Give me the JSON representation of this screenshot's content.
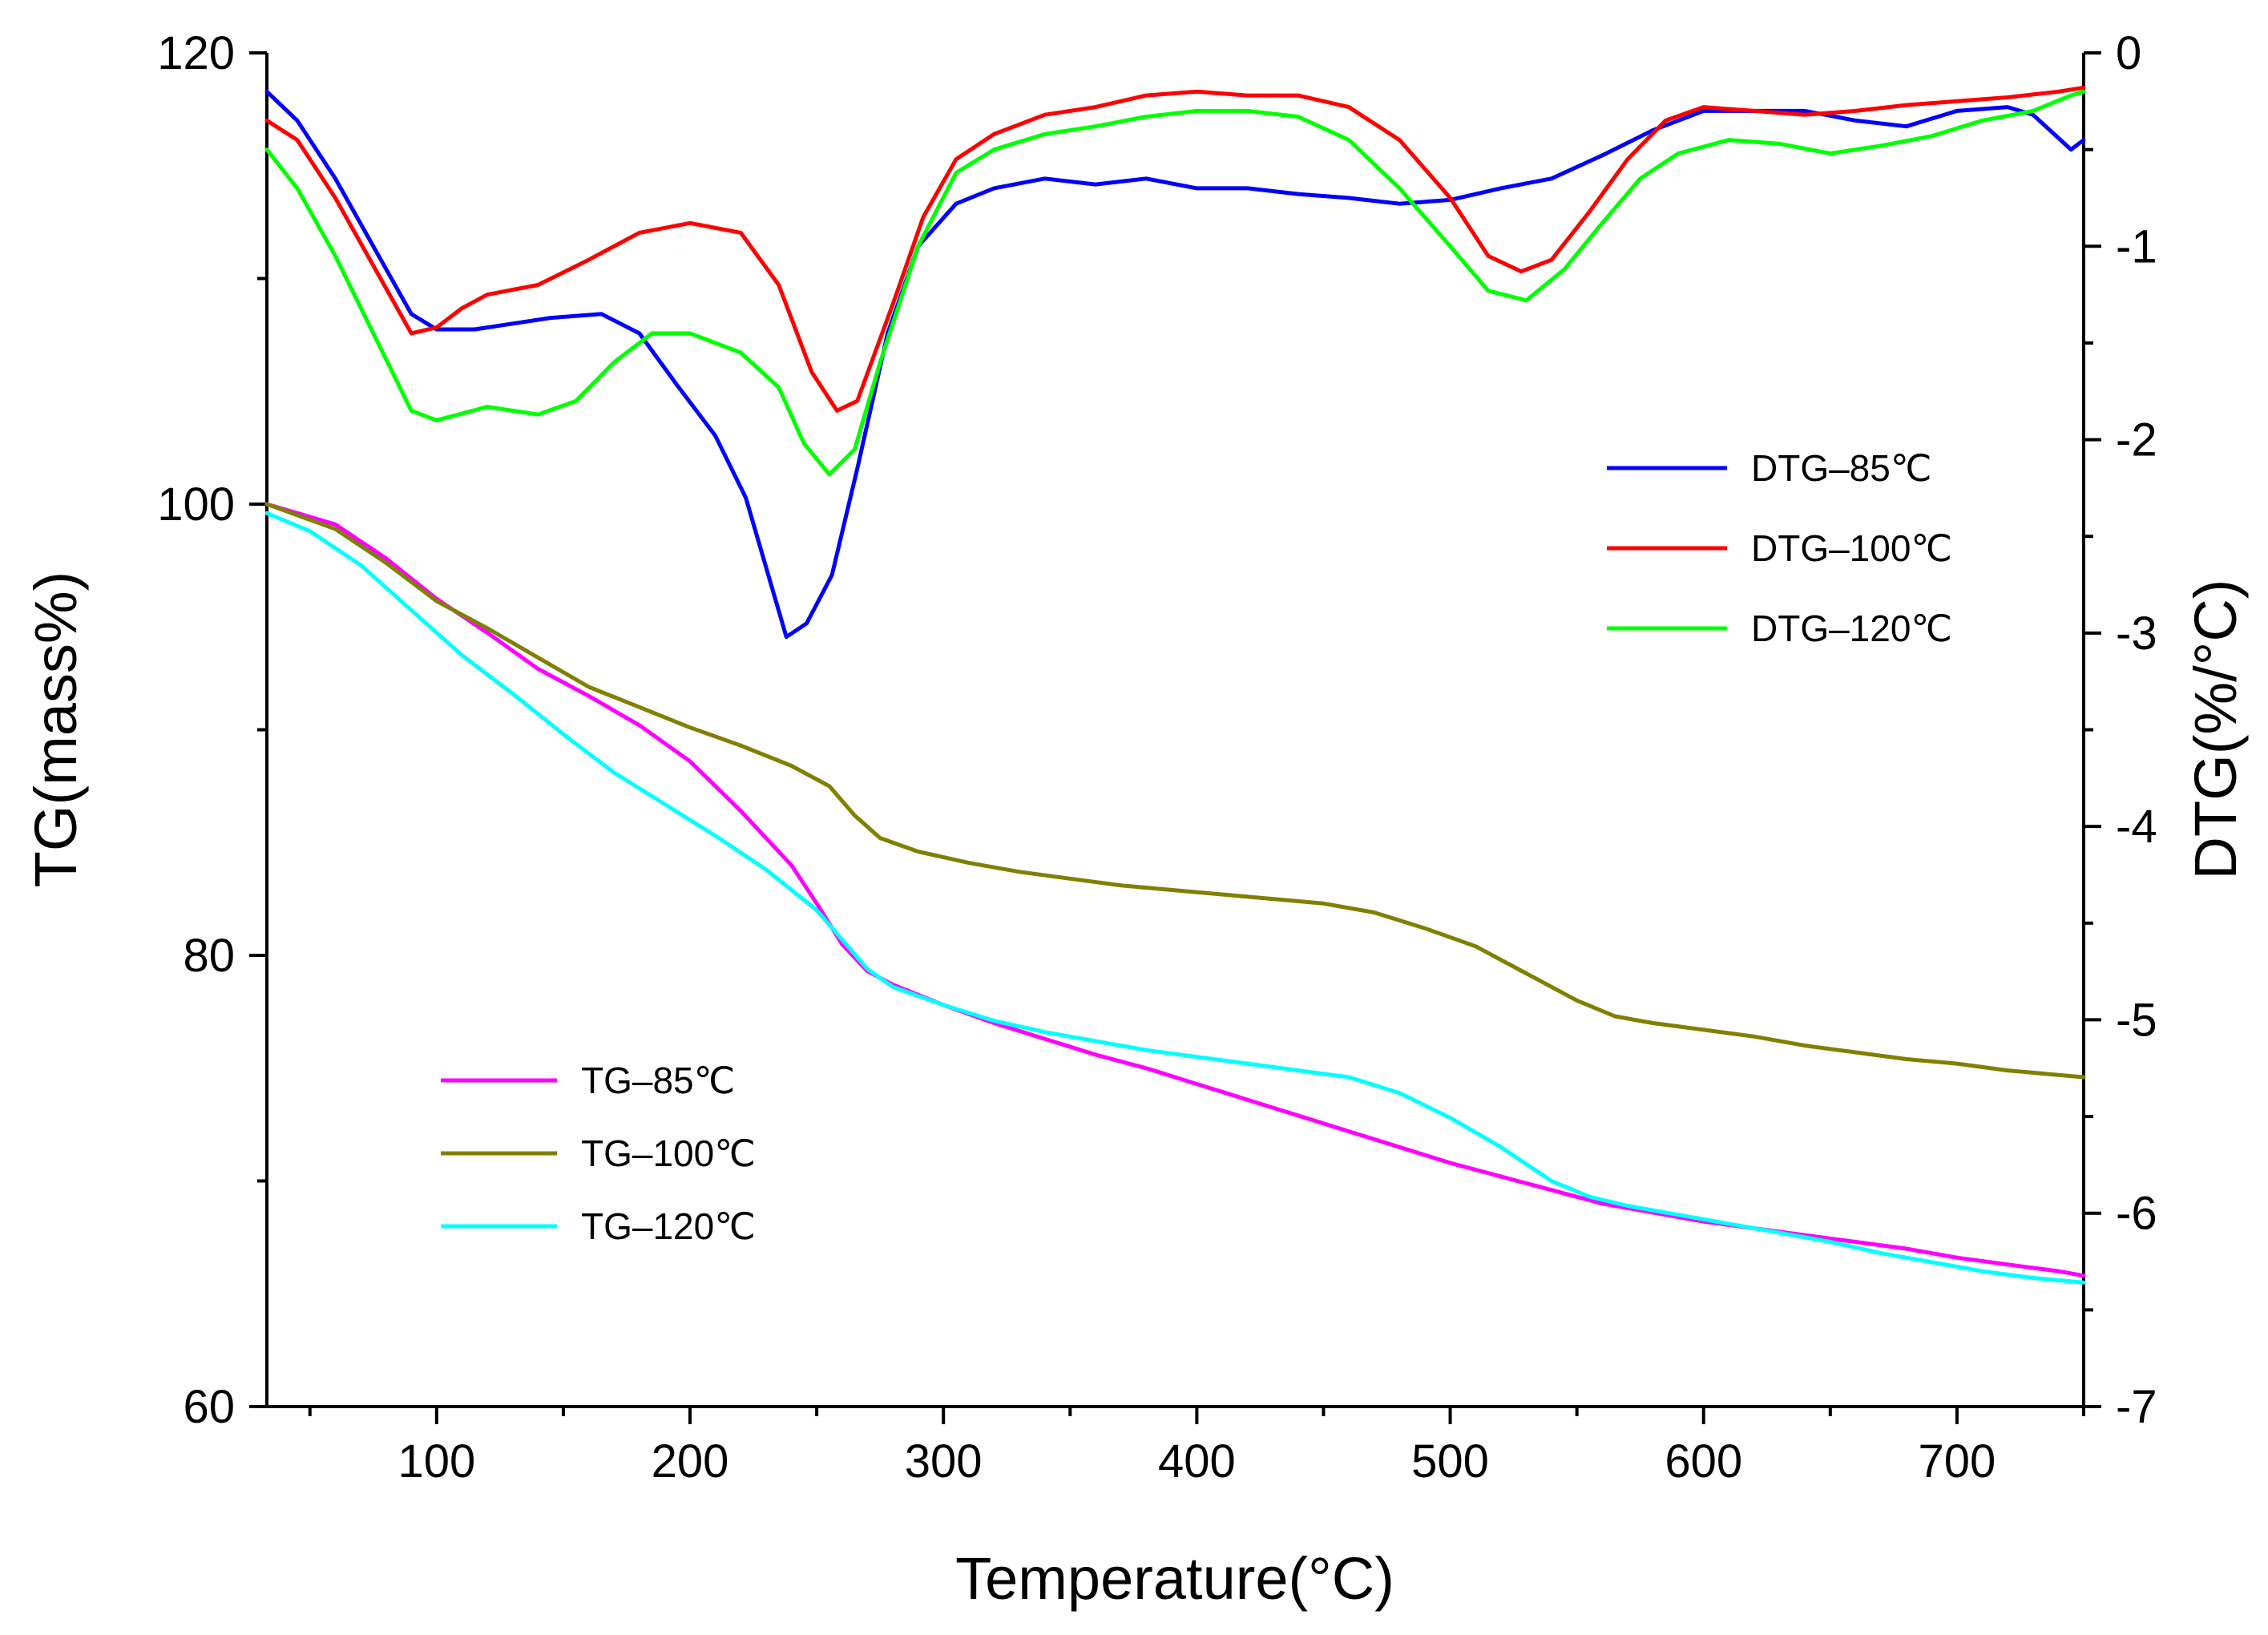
{
  "chart_data": {
    "type": "line",
    "xlabel": "Temperature(°C)",
    "ylabel_left": "TG(mass%)",
    "ylabel_right": "DTG(%/°C)",
    "xlim": [
      33,
      750
    ],
    "ylim_left": [
      60,
      120
    ],
    "ylim_right": [
      -7,
      0
    ],
    "x_ticks": [
      100,
      200,
      300,
      400,
      500,
      600,
      700
    ],
    "y_left_ticks": [
      60,
      80,
      100,
      120
    ],
    "y_right_ticks": [
      0,
      -1,
      -2,
      -3,
      -4,
      -5,
      -6,
      -7
    ],
    "grid": false,
    "series": [
      {
        "name": "DTG‒85℃",
        "axis": "right",
        "color": "#0000ff",
        "points": [
          [
            33,
            -0.2
          ],
          [
            45,
            -0.35
          ],
          [
            60,
            -0.65
          ],
          [
            75,
            -1.0
          ],
          [
            90,
            -1.35
          ],
          [
            100,
            -1.43
          ],
          [
            115,
            -1.43
          ],
          [
            130,
            -1.4
          ],
          [
            145,
            -1.37
          ],
          [
            165,
            -1.35
          ],
          [
            180,
            -1.45
          ],
          [
            195,
            -1.72
          ],
          [
            210,
            -1.98
          ],
          [
            222,
            -2.3
          ],
          [
            232,
            -2.75
          ],
          [
            238,
            -3.02
          ],
          [
            246,
            -2.95
          ],
          [
            256,
            -2.7
          ],
          [
            266,
            -2.15
          ],
          [
            278,
            -1.45
          ],
          [
            290,
            -1.0
          ],
          [
            305,
            -0.78
          ],
          [
            320,
            -0.7
          ],
          [
            340,
            -0.65
          ],
          [
            360,
            -0.68
          ],
          [
            380,
            -0.65
          ],
          [
            400,
            -0.7
          ],
          [
            420,
            -0.7
          ],
          [
            440,
            -0.73
          ],
          [
            460,
            -0.75
          ],
          [
            480,
            -0.78
          ],
          [
            500,
            -0.76
          ],
          [
            520,
            -0.7
          ],
          [
            540,
            -0.65
          ],
          [
            560,
            -0.53
          ],
          [
            580,
            -0.4
          ],
          [
            600,
            -0.3
          ],
          [
            620,
            -0.3
          ],
          [
            640,
            -0.3
          ],
          [
            660,
            -0.35
          ],
          [
            680,
            -0.38
          ],
          [
            700,
            -0.3
          ],
          [
            720,
            -0.28
          ],
          [
            730,
            -0.32
          ],
          [
            745,
            -0.5
          ],
          [
            750,
            -0.45
          ]
        ]
      },
      {
        "name": "DTG‒100℃",
        "axis": "right",
        "color": "#ff0000",
        "points": [
          [
            33,
            -0.35
          ],
          [
            45,
            -0.45
          ],
          [
            60,
            -0.75
          ],
          [
            75,
            -1.1
          ],
          [
            90,
            -1.45
          ],
          [
            100,
            -1.42
          ],
          [
            110,
            -1.32
          ],
          [
            120,
            -1.25
          ],
          [
            140,
            -1.2
          ],
          [
            160,
            -1.07
          ],
          [
            180,
            -0.93
          ],
          [
            200,
            -0.88
          ],
          [
            220,
            -0.93
          ],
          [
            235,
            -1.2
          ],
          [
            248,
            -1.65
          ],
          [
            258,
            -1.85
          ],
          [
            266,
            -1.8
          ],
          [
            280,
            -1.3
          ],
          [
            292,
            -0.85
          ],
          [
            305,
            -0.55
          ],
          [
            320,
            -0.42
          ],
          [
            340,
            -0.32
          ],
          [
            360,
            -0.28
          ],
          [
            380,
            -0.22
          ],
          [
            400,
            -0.2
          ],
          [
            420,
            -0.22
          ],
          [
            440,
            -0.22
          ],
          [
            460,
            -0.28
          ],
          [
            480,
            -0.45
          ],
          [
            500,
            -0.75
          ],
          [
            515,
            -1.05
          ],
          [
            528,
            -1.13
          ],
          [
            540,
            -1.07
          ],
          [
            555,
            -0.82
          ],
          [
            570,
            -0.55
          ],
          [
            585,
            -0.35
          ],
          [
            600,
            -0.28
          ],
          [
            620,
            -0.3
          ],
          [
            640,
            -0.32
          ],
          [
            660,
            -0.3
          ],
          [
            680,
            -0.27
          ],
          [
            700,
            -0.25
          ],
          [
            720,
            -0.23
          ],
          [
            740,
            -0.2
          ],
          [
            750,
            -0.18
          ]
        ]
      },
      {
        "name": "DTG‒120℃",
        "axis": "right",
        "color": "#00ff00",
        "points": [
          [
            33,
            -0.5
          ],
          [
            45,
            -0.7
          ],
          [
            60,
            -1.05
          ],
          [
            75,
            -1.45
          ],
          [
            90,
            -1.85
          ],
          [
            100,
            -1.9
          ],
          [
            120,
            -1.83
          ],
          [
            140,
            -1.87
          ],
          [
            155,
            -1.8
          ],
          [
            170,
            -1.6
          ],
          [
            185,
            -1.45
          ],
          [
            200,
            -1.45
          ],
          [
            220,
            -1.55
          ],
          [
            235,
            -1.73
          ],
          [
            245,
            -2.02
          ],
          [
            255,
            -2.18
          ],
          [
            265,
            -2.05
          ],
          [
            275,
            -1.6
          ],
          [
            290,
            -1.0
          ],
          [
            305,
            -0.62
          ],
          [
            320,
            -0.5
          ],
          [
            340,
            -0.42
          ],
          [
            360,
            -0.38
          ],
          [
            380,
            -0.33
          ],
          [
            400,
            -0.3
          ],
          [
            420,
            -0.3
          ],
          [
            440,
            -0.33
          ],
          [
            460,
            -0.45
          ],
          [
            480,
            -0.7
          ],
          [
            500,
            -1.0
          ],
          [
            515,
            -1.23
          ],
          [
            530,
            -1.28
          ],
          [
            545,
            -1.12
          ],
          [
            560,
            -0.88
          ],
          [
            575,
            -0.65
          ],
          [
            590,
            -0.52
          ],
          [
            610,
            -0.45
          ],
          [
            630,
            -0.47
          ],
          [
            650,
            -0.52
          ],
          [
            670,
            -0.48
          ],
          [
            690,
            -0.43
          ],
          [
            710,
            -0.35
          ],
          [
            730,
            -0.3
          ],
          [
            745,
            -0.22
          ],
          [
            750,
            -0.2
          ]
        ]
      },
      {
        "name": "TG‒85℃",
        "axis": "left",
        "color": "#ff00ff",
        "points": [
          [
            33,
            100
          ],
          [
            60,
            99.1
          ],
          [
            80,
            97.6
          ],
          [
            100,
            95.8
          ],
          [
            120,
            94.3
          ],
          [
            140,
            92.7
          ],
          [
            160,
            91.5
          ],
          [
            180,
            90.2
          ],
          [
            200,
            88.6
          ],
          [
            220,
            86.4
          ],
          [
            240,
            84.0
          ],
          [
            250,
            82.3
          ],
          [
            260,
            80.5
          ],
          [
            270,
            79.3
          ],
          [
            280,
            78.7
          ],
          [
            300,
            77.8
          ],
          [
            320,
            77.0
          ],
          [
            340,
            76.3
          ],
          [
            360,
            75.6
          ],
          [
            380,
            75.0
          ],
          [
            400,
            74.3
          ],
          [
            420,
            73.6
          ],
          [
            440,
            72.9
          ],
          [
            460,
            72.2
          ],
          [
            480,
            71.5
          ],
          [
            500,
            70.8
          ],
          [
            520,
            70.2
          ],
          [
            540,
            69.6
          ],
          [
            560,
            69.0
          ],
          [
            580,
            68.6
          ],
          [
            600,
            68.2
          ],
          [
            620,
            67.9
          ],
          [
            640,
            67.6
          ],
          [
            660,
            67.3
          ],
          [
            680,
            67.0
          ],
          [
            700,
            66.6
          ],
          [
            720,
            66.3
          ],
          [
            740,
            66.0
          ],
          [
            750,
            65.8
          ]
        ]
      },
      {
        "name": "TG‒100℃",
        "axis": "left",
        "color": "#808000",
        "points": [
          [
            33,
            100
          ],
          [
            60,
            98.9
          ],
          [
            80,
            97.4
          ],
          [
            100,
            95.7
          ],
          [
            120,
            94.5
          ],
          [
            140,
            93.2
          ],
          [
            160,
            91.9
          ],
          [
            180,
            91.0
          ],
          [
            200,
            90.1
          ],
          [
            220,
            89.3
          ],
          [
            240,
            88.4
          ],
          [
            255,
            87.5
          ],
          [
            265,
            86.2
          ],
          [
            275,
            85.2
          ],
          [
            290,
            84.6
          ],
          [
            310,
            84.1
          ],
          [
            330,
            83.7
          ],
          [
            350,
            83.4
          ],
          [
            370,
            83.1
          ],
          [
            390,
            82.9
          ],
          [
            410,
            82.7
          ],
          [
            430,
            82.5
          ],
          [
            450,
            82.3
          ],
          [
            470,
            81.9
          ],
          [
            490,
            81.2
          ],
          [
            510,
            80.4
          ],
          [
            530,
            79.2
          ],
          [
            550,
            78.0
          ],
          [
            565,
            77.3
          ],
          [
            580,
            77.0
          ],
          [
            600,
            76.7
          ],
          [
            620,
            76.4
          ],
          [
            640,
            76.0
          ],
          [
            660,
            75.7
          ],
          [
            680,
            75.4
          ],
          [
            700,
            75.2
          ],
          [
            720,
            74.9
          ],
          [
            740,
            74.7
          ],
          [
            750,
            74.6
          ]
        ]
      },
      {
        "name": "TG‒120℃",
        "axis": "left",
        "color": "#00ffff",
        "points": [
          [
            33,
            99.6
          ],
          [
            50,
            98.8
          ],
          [
            70,
            97.3
          ],
          [
            90,
            95.3
          ],
          [
            110,
            93.3
          ],
          [
            130,
            91.6
          ],
          [
            150,
            89.8
          ],
          [
            170,
            88.1
          ],
          [
            190,
            86.7
          ],
          [
            210,
            85.3
          ],
          [
            230,
            83.8
          ],
          [
            250,
            82.0
          ],
          [
            260,
            80.7
          ],
          [
            270,
            79.4
          ],
          [
            280,
            78.6
          ],
          [
            300,
            77.8
          ],
          [
            320,
            77.1
          ],
          [
            340,
            76.6
          ],
          [
            360,
            76.2
          ],
          [
            380,
            75.8
          ],
          [
            400,
            75.5
          ],
          [
            420,
            75.2
          ],
          [
            440,
            74.9
          ],
          [
            460,
            74.6
          ],
          [
            480,
            73.9
          ],
          [
            500,
            72.8
          ],
          [
            520,
            71.5
          ],
          [
            540,
            70.0
          ],
          [
            555,
            69.3
          ],
          [
            570,
            68.9
          ],
          [
            590,
            68.5
          ],
          [
            610,
            68.1
          ],
          [
            630,
            67.7
          ],
          [
            650,
            67.3
          ],
          [
            670,
            66.8
          ],
          [
            690,
            66.4
          ],
          [
            710,
            66.0
          ],
          [
            730,
            65.7
          ],
          [
            750,
            65.5
          ]
        ]
      }
    ],
    "legend_dtg": [
      "DTG‒85℃",
      "DTG‒100℃",
      "DTG‒120℃"
    ],
    "legend_tg": [
      "TG‒85℃",
      "TG‒100℃",
      "TG‒120℃"
    ],
    "legend_dtg_position": "upper-right",
    "legend_tg_position": "lower-left"
  }
}
